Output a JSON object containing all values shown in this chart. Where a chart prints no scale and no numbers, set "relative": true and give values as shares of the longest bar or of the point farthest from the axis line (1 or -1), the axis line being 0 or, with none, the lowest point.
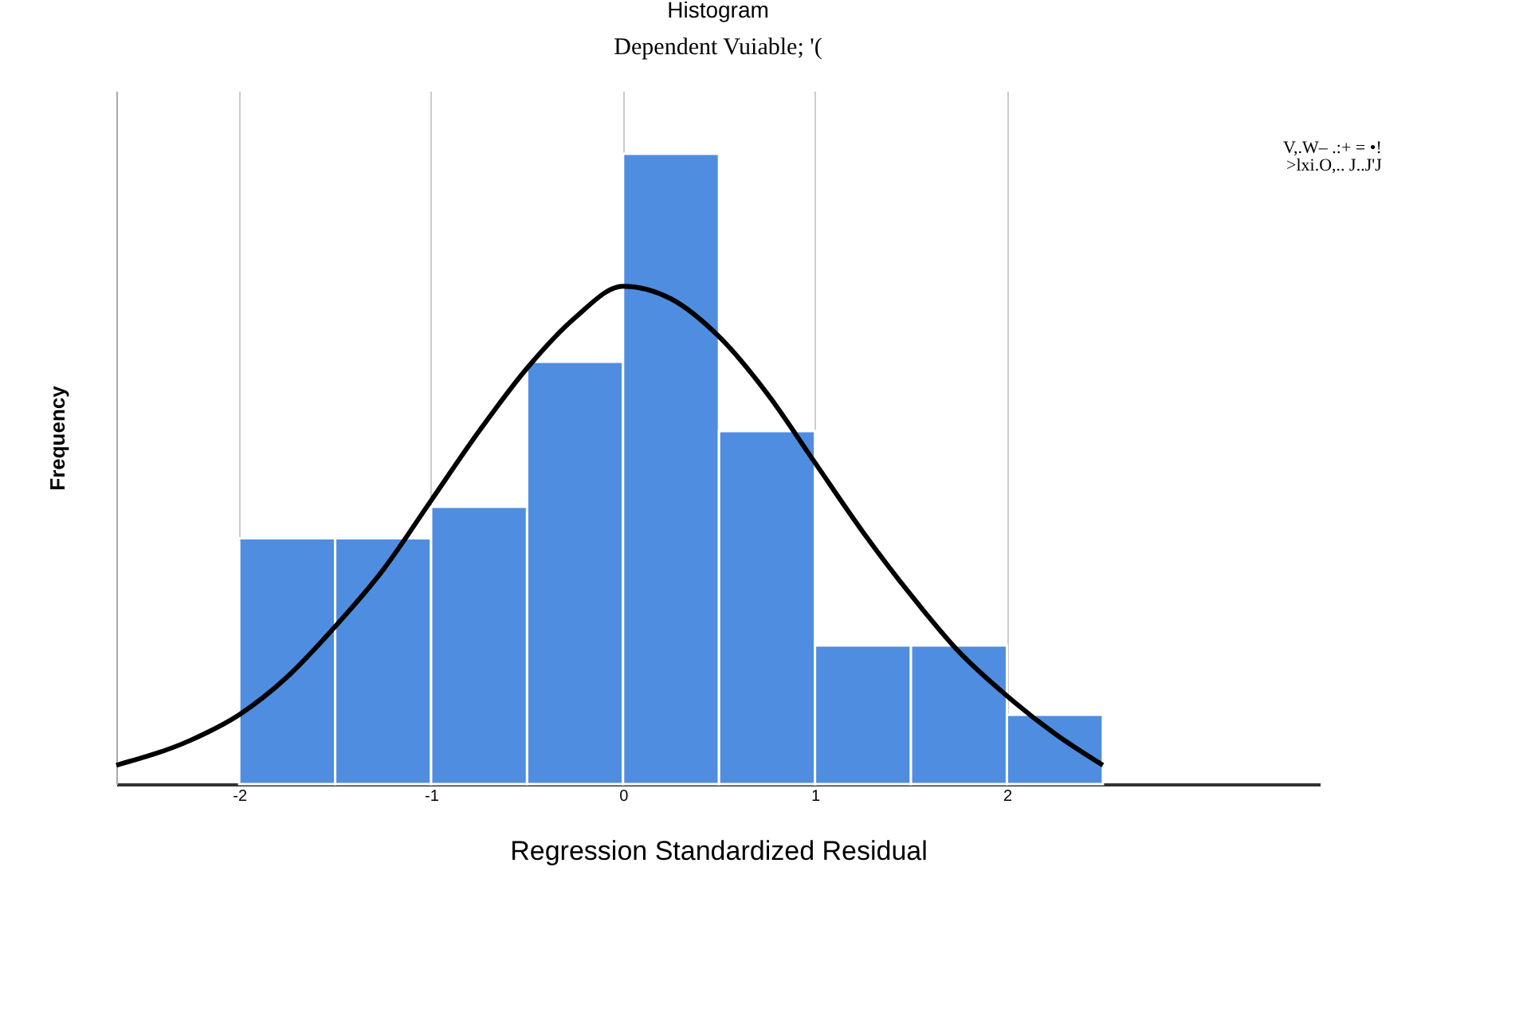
{
  "chart_data": {
    "type": "histogram",
    "title": "Histogram",
    "subtitle": "Dependent Vuiable; '(",
    "xlabel": "Regression Standardized Residual",
    "ylabel": "Frequency",
    "relative": true,
    "bins": [
      -2,
      -1.5,
      -1,
      -0.5,
      0,
      0.5,
      1,
      1.5,
      2,
      2.5
    ],
    "series": [
      {
        "color": "#4f8de0",
        "values": [
          0.39,
          0.39,
          0.44,
          0.67,
          1,
          0.56,
          0.22,
          0.22,
          0.11
        ]
      },
      {
        "type": "line",
        "color": "#000000",
        "x": [
          -2.64,
          -2.25,
          -2,
          -1.75,
          -1.5,
          -1.25,
          -1,
          -0.75,
          -0.5,
          -0.25,
          0,
          0.25,
          0.5,
          0.75,
          1,
          1.25,
          1.5,
          1.75,
          2,
          2.25,
          2.5
        ],
        "values": [
          0.03,
          0.07,
          0.11,
          0.17,
          0.25,
          0.34,
          0.45,
          0.56,
          0.66,
          0.74,
          0.79,
          0.77,
          0.71,
          0.62,
          0.51,
          0.4,
          0.3,
          0.21,
          0.14,
          0.08,
          0.03
        ]
      }
    ],
    "xlim": [
      -2.64,
      3.63
    ],
    "xticks": [
      -2,
      -1,
      0,
      1,
      2
    ],
    "grid": "x",
    "annotations": [
      "V,.W–  .:+ = •!",
      ">lxi.O,.. J..J'J"
    ]
  }
}
